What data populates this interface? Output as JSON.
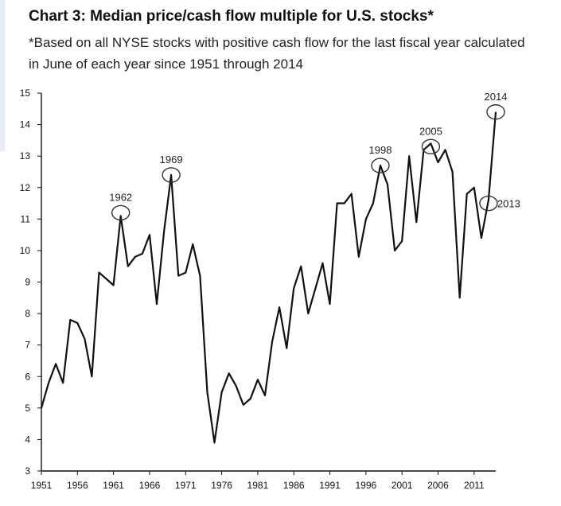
{
  "chart_data": {
    "type": "line",
    "title": "Chart 3: Median price/cash flow multiple for U.S. stocks*",
    "subtitle": "*Based on all NYSE stocks with positive cash flow for the last fiscal year calculated in June of each year since 1951 through 2014",
    "xlabel": "",
    "ylabel": "",
    "xlim": [
      1951,
      2014
    ],
    "ylim": [
      3,
      15
    ],
    "yticks": [
      3,
      4,
      5,
      6,
      7,
      8,
      9,
      10,
      11,
      12,
      13,
      14,
      15
    ],
    "ytick_labels": [
      "3",
      "4",
      "5",
      "6",
      "7",
      "8",
      "9",
      "10",
      "11",
      "12",
      "13",
      "14",
      "15"
    ],
    "xticks": [
      1951,
      1956,
      1961,
      1966,
      1971,
      1976,
      1981,
      1986,
      1991,
      1996,
      2001,
      2006,
      2011
    ],
    "xtick_labels": [
      "1951",
      "1956",
      "1961",
      "1966",
      "1971",
      "1976",
      "1981",
      "1986",
      "1991",
      "1996",
      "2001",
      "2006",
      "2011"
    ],
    "grid": false,
    "legend": "none",
    "line_color": "#111111",
    "series": [
      {
        "x": [
          1951,
          1952,
          1953,
          1954,
          1955,
          1956,
          1957,
          1958,
          1959,
          1960,
          1961,
          1962,
          1963,
          1964,
          1965,
          1966,
          1967,
          1968,
          1969,
          1970,
          1971,
          1972,
          1973,
          1974,
          1975,
          1976,
          1977,
          1978,
          1979,
          1980,
          1981,
          1982,
          1983,
          1984,
          1985,
          1986,
          1987,
          1988,
          1989,
          1990,
          1991,
          1992,
          1993,
          1994,
          1995,
          1996,
          1997,
          1998,
          1999,
          2000,
          2001,
          2002,
          2003,
          2004,
          2005,
          2006,
          2007,
          2008,
          2009,
          2010,
          2011,
          2012,
          2013,
          2014
        ],
        "values": [
          5.0,
          5.8,
          6.4,
          5.8,
          7.8,
          7.7,
          7.2,
          6.0,
          9.3,
          9.1,
          8.9,
          11.1,
          9.5,
          9.8,
          9.9,
          10.5,
          8.3,
          10.6,
          12.4,
          9.2,
          9.3,
          10.2,
          9.2,
          5.5,
          3.9,
          5.5,
          6.1,
          5.7,
          5.1,
          5.3,
          5.9,
          5.4,
          7.1,
          8.2,
          6.9,
          8.8,
          9.5,
          8.0,
          8.8,
          9.6,
          8.3,
          11.5,
          11.5,
          11.8,
          9.8,
          11.0,
          11.5,
          12.7,
          12.1,
          10.0,
          10.3,
          13.0,
          10.9,
          13.2,
          13.4,
          12.8,
          13.2,
          12.5,
          8.5,
          11.8,
          12.0,
          10.4,
          11.6,
          14.4
        ]
      }
    ],
    "annotations": [
      {
        "label": "1962",
        "x": 1962,
        "y": 11.2
      },
      {
        "label": "1969",
        "x": 1969,
        "y": 12.4
      },
      {
        "label": "1998",
        "x": 1998,
        "y": 12.7
      },
      {
        "label": "2005",
        "x": 2005,
        "y": 13.3
      },
      {
        "label": "2013",
        "x": 2013,
        "y": 11.5
      },
      {
        "label": "2014",
        "x": 2014,
        "y": 14.4
      }
    ]
  }
}
